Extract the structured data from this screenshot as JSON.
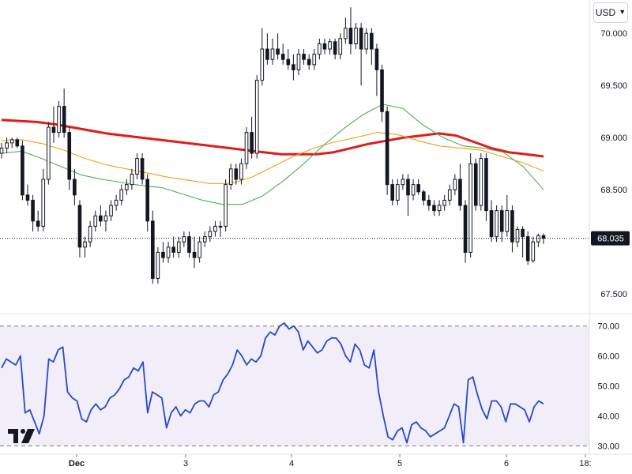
{
  "currency": {
    "label": "USD",
    "icon": "chevron-down-icon"
  },
  "logo": {
    "icon": "tradingview-logo-icon"
  },
  "chart_data": [
    {
      "type": "candlestick",
      "title": "",
      "ylim": [
        67.35,
        70.32
      ],
      "y_ticks": [
        "70.000",
        "69.500",
        "69.000",
        "68.500",
        "68.000",
        "67.500"
      ],
      "last_price": "68.035",
      "x_labels": [
        "Dec",
        "3",
        "4",
        "5",
        "6",
        "18:"
      ],
      "colors": {
        "up": "#131722",
        "down": "#131722",
        "ma_long": "#e21b1b",
        "ma_mid": "#f59c1a",
        "ma_short": "#4caf50"
      },
      "candles": [
        [
          68.85,
          68.95,
          68.8,
          68.9
        ],
        [
          68.9,
          69.0,
          68.85,
          68.95
        ],
        [
          68.95,
          69.0,
          68.9,
          68.98
        ],
        [
          68.98,
          69.0,
          68.9,
          68.92
        ],
        [
          68.92,
          68.97,
          68.4,
          68.45
        ],
        [
          68.45,
          68.55,
          68.35,
          68.4
        ],
        [
          68.4,
          68.45,
          68.1,
          68.2
        ],
        [
          68.2,
          68.3,
          68.1,
          68.15
        ],
        [
          68.15,
          68.7,
          68.1,
          68.6
        ],
        [
          68.6,
          69.15,
          68.55,
          69.1
        ],
        [
          69.1,
          69.3,
          68.95,
          69.05
        ],
        [
          69.05,
          69.35,
          69.0,
          69.3
        ],
        [
          69.3,
          69.47,
          69.0,
          69.05
        ],
        [
          69.05,
          69.1,
          68.5,
          68.6
        ],
        [
          68.6,
          68.7,
          68.35,
          68.45
        ],
        [
          68.35,
          68.4,
          67.85,
          67.95
        ],
        [
          67.95,
          68.05,
          67.85,
          68.0
        ],
        [
          68.0,
          68.2,
          67.95,
          68.15
        ],
        [
          68.15,
          68.3,
          68.1,
          68.25
        ],
        [
          68.25,
          68.35,
          68.15,
          68.2
        ],
        [
          68.2,
          68.3,
          68.1,
          68.25
        ],
        [
          68.25,
          68.4,
          68.2,
          68.35
        ],
        [
          68.35,
          68.45,
          68.3,
          68.4
        ],
        [
          68.4,
          68.55,
          68.35,
          68.5
        ],
        [
          68.5,
          68.6,
          68.45,
          68.55
        ],
        [
          68.55,
          68.7,
          68.5,
          68.65
        ],
        [
          68.65,
          68.85,
          68.6,
          68.8
        ],
        [
          68.8,
          68.85,
          68.55,
          68.6
        ],
        [
          68.6,
          68.65,
          68.1,
          68.2
        ],
        [
          68.2,
          68.3,
          67.6,
          67.65
        ],
        [
          67.65,
          67.95,
          67.6,
          67.9
        ],
        [
          67.9,
          68.0,
          67.8,
          67.85
        ],
        [
          67.85,
          68.0,
          67.8,
          67.95
        ],
        [
          67.95,
          68.05,
          67.85,
          67.9
        ],
        [
          67.9,
          68.05,
          67.85,
          68.0
        ],
        [
          68.0,
          68.1,
          67.95,
          68.05
        ],
        [
          68.05,
          68.1,
          67.85,
          67.9
        ],
        [
          67.9,
          68.05,
          67.75,
          67.85
        ],
        [
          67.85,
          68.05,
          67.8,
          68.0
        ],
        [
          68.0,
          68.1,
          67.95,
          68.05
        ],
        [
          68.05,
          68.15,
          68.0,
          68.1
        ],
        [
          68.1,
          68.2,
          68.05,
          68.15
        ],
        [
          68.15,
          68.2,
          68.05,
          68.15
        ],
        [
          68.15,
          68.6,
          68.1,
          68.55
        ],
        [
          68.55,
          68.75,
          68.5,
          68.7
        ],
        [
          68.7,
          68.75,
          68.55,
          68.6
        ],
        [
          68.6,
          68.8,
          68.55,
          68.75
        ],
        [
          68.75,
          69.1,
          68.7,
          69.05
        ],
        [
          69.05,
          69.2,
          68.8,
          68.85
        ],
        [
          68.85,
          69.6,
          68.8,
          69.55
        ],
        [
          69.55,
          70.05,
          69.5,
          69.85
        ],
        [
          69.85,
          70.0,
          69.7,
          69.75
        ],
        [
          69.75,
          69.95,
          69.7,
          69.85
        ],
        [
          69.85,
          70.0,
          69.75,
          69.8
        ],
        [
          69.8,
          69.9,
          69.7,
          69.75
        ],
        [
          69.75,
          69.85,
          69.65,
          69.7
        ],
        [
          69.7,
          69.8,
          69.55,
          69.65
        ],
        [
          69.65,
          69.85,
          69.6,
          69.8
        ],
        [
          69.8,
          69.85,
          69.7,
          69.75
        ],
        [
          69.75,
          69.8,
          69.65,
          69.7
        ],
        [
          69.7,
          69.85,
          69.65,
          69.8
        ],
        [
          69.8,
          69.95,
          69.75,
          69.9
        ],
        [
          69.9,
          69.95,
          69.8,
          69.85
        ],
        [
          69.85,
          69.95,
          69.8,
          69.92
        ],
        [
          69.92,
          69.95,
          69.75,
          69.8
        ],
        [
          69.8,
          70.0,
          69.75,
          69.95
        ],
        [
          69.95,
          70.15,
          69.9,
          70.05
        ],
        [
          70.05,
          70.25,
          69.8,
          69.9
        ],
        [
          69.9,
          70.1,
          69.85,
          70.05
        ],
        [
          70.05,
          70.1,
          69.5,
          69.85
        ],
        [
          69.85,
          70.05,
          69.8,
          70.0
        ],
        [
          70.0,
          70.05,
          69.7,
          69.85
        ],
        [
          69.85,
          69.9,
          69.4,
          69.65
        ],
        [
          69.65,
          69.7,
          69.15,
          69.25
        ],
        [
          69.25,
          69.3,
          68.45,
          68.55
        ],
        [
          68.55,
          68.6,
          68.35,
          68.4
        ],
        [
          68.4,
          68.6,
          68.35,
          68.55
        ],
        [
          68.55,
          68.65,
          68.5,
          68.6
        ],
        [
          68.6,
          68.65,
          68.25,
          68.45
        ],
        [
          68.45,
          68.6,
          68.4,
          68.55
        ],
        [
          68.55,
          68.6,
          68.45,
          68.48
        ],
        [
          68.48,
          68.5,
          68.35,
          68.4
        ],
        [
          68.4,
          68.45,
          68.3,
          68.35
        ],
        [
          68.35,
          68.4,
          68.25,
          68.3
        ],
        [
          68.3,
          68.4,
          68.25,
          68.35
        ],
        [
          68.35,
          68.45,
          68.3,
          68.4
        ],
        [
          68.4,
          68.55,
          68.35,
          68.5
        ],
        [
          68.5,
          68.65,
          68.45,
          68.6
        ],
        [
          68.6,
          68.75,
          68.3,
          68.35
        ],
        [
          68.35,
          68.4,
          67.8,
          67.9
        ],
        [
          67.9,
          68.85,
          67.85,
          68.75
        ],
        [
          68.75,
          68.8,
          68.3,
          68.35
        ],
        [
          68.35,
          68.85,
          68.3,
          68.8
        ],
        [
          68.8,
          68.85,
          68.2,
          68.3
        ],
        [
          68.3,
          68.4,
          68.0,
          68.05
        ],
        [
          68.05,
          68.35,
          68.0,
          68.3
        ],
        [
          68.3,
          68.35,
          68.0,
          68.1
        ],
        [
          68.1,
          68.45,
          68.05,
          68.3
        ],
        [
          68.3,
          68.35,
          67.9,
          68.0
        ],
        [
          68.0,
          68.15,
          67.95,
          68.12
        ],
        [
          68.12,
          68.15,
          67.85,
          68.05
        ],
        [
          68.05,
          68.1,
          67.78,
          67.82
        ],
        [
          67.82,
          68.05,
          67.8,
          68.0
        ],
        [
          68.0,
          68.08,
          67.95,
          68.06
        ],
        [
          68.06,
          68.08,
          67.98,
          68.035
        ]
      ],
      "moving_averages": [
        {
          "name": "",
          "color": "#e21b1b",
          "values": [
            69.17,
            69.16,
            69.15,
            69.13,
            69.1,
            69.07,
            69.04,
            69.02,
            69.0,
            68.98,
            68.96,
            68.94,
            68.92,
            68.9,
            68.88,
            68.86,
            68.84,
            68.84,
            68.84,
            68.86,
            68.9,
            68.94,
            68.97,
            69.0,
            69.02,
            69.04,
            69.02,
            68.96,
            68.9,
            68.86,
            68.84,
            68.82
          ]
        },
        {
          "name": "",
          "color": "#f59c1a",
          "values": [
            68.97,
            68.98,
            68.94,
            68.88,
            68.8,
            68.74,
            68.7,
            68.66,
            68.62,
            68.59,
            68.56,
            68.56,
            68.62,
            68.72,
            68.82,
            68.9,
            68.96,
            69.0,
            69.05,
            69.03,
            68.97,
            68.92,
            68.9,
            68.88,
            68.82,
            68.76,
            68.68
          ]
        },
        {
          "name": "",
          "color": "#4caf50",
          "values": [
            68.85,
            68.87,
            68.8,
            68.72,
            68.64,
            68.6,
            68.57,
            68.54,
            68.52,
            68.46,
            68.4,
            68.36,
            68.36,
            68.44,
            68.58,
            68.74,
            68.92,
            69.08,
            69.22,
            69.32,
            69.28,
            69.12,
            69.0,
            68.92,
            68.9,
            68.86,
            68.72,
            68.5
          ]
        }
      ]
    },
    {
      "type": "line",
      "title": "",
      "ylim": [
        28.5,
        72.3
      ],
      "y_ticks": [
        "70.00",
        "60.00",
        "50.00",
        "40.00",
        "30.00"
      ],
      "band": [
        30,
        70
      ],
      "band_color": "#7e57c2",
      "line_color": "#2649c9",
      "series": [
        {
          "name": "",
          "values": [
            56,
            59,
            58,
            57,
            60,
            41,
            42,
            38,
            34,
            40,
            59,
            58,
            62,
            63,
            48,
            46,
            45,
            39,
            38,
            42,
            44,
            42,
            43,
            46,
            47,
            49,
            52,
            53,
            56,
            55,
            58,
            41,
            48,
            47,
            46,
            36,
            41,
            43,
            40,
            42,
            41,
            44,
            45,
            45,
            43,
            47,
            48,
            52,
            54,
            57,
            62,
            60,
            57,
            59,
            58,
            60,
            66,
            68,
            67,
            70,
            71,
            69,
            70,
            68,
            62,
            65,
            63,
            61,
            62,
            65,
            66,
            66,
            64,
            60,
            58,
            64,
            62,
            57,
            56,
            62,
            48,
            40,
            33,
            32,
            35,
            36,
            31,
            37,
            38,
            36,
            35,
            33,
            34,
            35,
            36,
            40,
            44,
            43,
            31,
            52,
            53,
            47,
            42,
            39,
            45,
            45,
            43,
            38,
            44,
            44,
            43,
            42,
            38,
            43,
            45,
            44
          ]
        }
      ]
    }
  ]
}
